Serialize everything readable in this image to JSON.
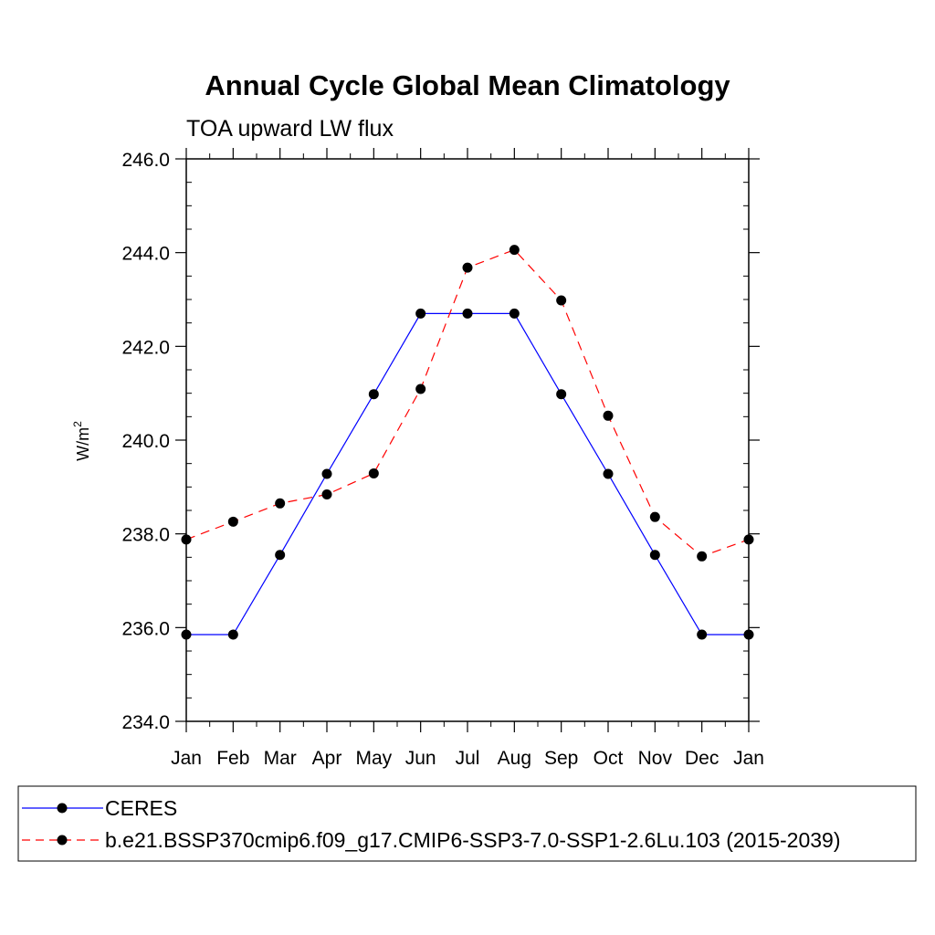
{
  "chart_data": {
    "type": "line",
    "title": "Annual Cycle Global Mean Climatology",
    "subtitle": "TOA upward LW flux",
    "ylabel_base": "W/m",
    "ylabel_sup": "2",
    "xlabel": "",
    "categories": [
      "Jan",
      "Feb",
      "Mar",
      "Apr",
      "May",
      "Jun",
      "Jul",
      "Aug",
      "Sep",
      "Oct",
      "Nov",
      "Dec",
      "Jan"
    ],
    "ylim": [
      234.0,
      246.0
    ],
    "yticks": [
      "234.0",
      "236.0",
      "238.0",
      "240.0",
      "242.0",
      "244.0",
      "246.0"
    ],
    "legend_position": "bottom",
    "series": [
      {
        "name": "CERES",
        "color": "#0000ff",
        "line_style": "solid",
        "marker": "filled-circle",
        "values": [
          235.85,
          235.85,
          237.55,
          239.28,
          240.98,
          242.7,
          242.7,
          242.7,
          240.98,
          239.28,
          237.55,
          235.85,
          235.85
        ]
      },
      {
        "name": "b.e21.BSSP370cmip6.f09_g17.CMIP6-SSP3-7.0-SSP1-2.6Lu.103 (2015-2039)",
        "color": "#ff0000",
        "line_style": "dashed",
        "marker": "filled-circle",
        "values": [
          237.88,
          238.26,
          238.65,
          238.84,
          239.29,
          241.09,
          243.68,
          244.06,
          242.98,
          240.52,
          238.36,
          237.52,
          237.88
        ]
      }
    ]
  }
}
